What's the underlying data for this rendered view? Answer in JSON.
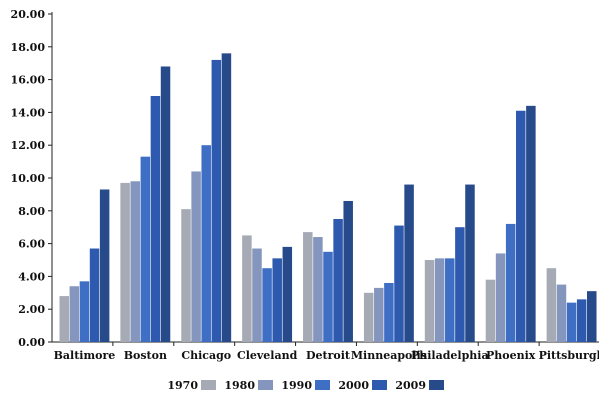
{
  "chart_data": {
    "type": "bar",
    "title": "",
    "xlabel": "",
    "ylabel": "",
    "ylim": [
      0,
      20
    ],
    "y_ticks": [
      "0.00",
      "2.00",
      "4.00",
      "6.00",
      "8.00",
      "10.00",
      "12.00",
      "14.00",
      "16.00",
      "18.00",
      "20.00"
    ],
    "grid": false,
    "legend_position": "bottom",
    "categories": [
      "Baltimore",
      "Boston",
      "Chicago",
      "Cleveland",
      "Detroit",
      "Minneapolis",
      "Philadelphia",
      "Phoenix",
      "Pittsburgh"
    ],
    "series": [
      {
        "name": "1970",
        "color": "#a5aab5",
        "values": [
          2.8,
          9.7,
          8.1,
          6.5,
          6.7,
          3.0,
          5.0,
          3.8,
          4.5
        ]
      },
      {
        "name": "1980",
        "color": "#8496bd",
        "values": [
          3.4,
          9.8,
          10.4,
          5.7,
          6.4,
          3.3,
          5.1,
          5.4,
          3.5
        ]
      },
      {
        "name": "1990",
        "color": "#3e6fc4",
        "values": [
          3.7,
          11.3,
          12.0,
          4.5,
          5.5,
          3.6,
          5.1,
          7.2,
          2.4
        ]
      },
      {
        "name": "2000",
        "color": "#2d5aae",
        "values": [
          5.7,
          15.0,
          17.2,
          5.1,
          7.5,
          7.1,
          7.0,
          14.1,
          2.6
        ]
      },
      {
        "name": "2009",
        "color": "#264a8a",
        "values": [
          9.3,
          16.8,
          17.6,
          5.8,
          8.6,
          9.6,
          9.6,
          14.4,
          3.1
        ]
      }
    ]
  }
}
